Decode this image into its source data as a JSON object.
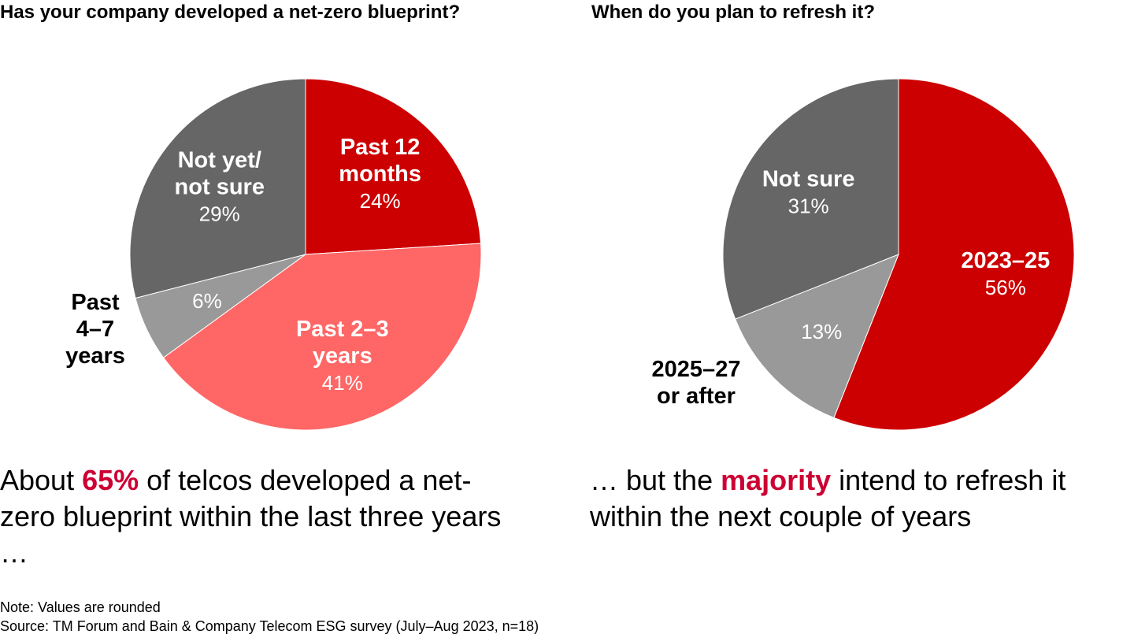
{
  "colors": {
    "red": "#cc0000",
    "salmon": "#ff6666",
    "dark_gray": "#666666",
    "light_gray": "#999999",
    "highlight": "#cc0033"
  },
  "chart_data": [
    {
      "type": "pie",
      "title": "Has your company developed a net-zero blueprint?",
      "slices": [
        {
          "label_lines": [
            "Past 12",
            "months"
          ],
          "pct_label": "24%",
          "value": 24,
          "color": "#cc0000",
          "label_outside": false
        },
        {
          "label_lines": [
            "Past 2–3",
            "years"
          ],
          "pct_label": "41%",
          "value": 41,
          "color": "#ff6666",
          "label_outside": false
        },
        {
          "label_lines": [
            "Past",
            "4–7",
            "years"
          ],
          "pct_label": "6%",
          "value": 6,
          "color": "#999999",
          "label_outside": true
        },
        {
          "label_lines": [
            "Not yet/",
            "not sure"
          ],
          "pct_label": "29%",
          "value": 29,
          "color": "#666666",
          "label_outside": false
        }
      ]
    },
    {
      "type": "pie",
      "title": "When do you plan to refresh it?",
      "slices": [
        {
          "label_lines": [
            "2023–25"
          ],
          "pct_label": "56%",
          "value": 56,
          "color": "#cc0000",
          "label_outside": false
        },
        {
          "label_lines": [
            "2025–27",
            "or after"
          ],
          "pct_label": "13%",
          "value": 13,
          "color": "#999999",
          "label_outside": true
        },
        {
          "label_lines": [
            "Not sure"
          ],
          "pct_label": "31%",
          "value": 31,
          "color": "#666666",
          "label_outside": false
        }
      ]
    }
  ],
  "captions": {
    "left": {
      "before": "About ",
      "highlight": "65%",
      "after": " of telcos developed a net-zero blueprint within the last three years …"
    },
    "right": {
      "before": "… but the ",
      "highlight": "majority",
      "after": " intend to refresh it within the next couple of years"
    }
  },
  "footer": {
    "note": "Note: Values are rounded",
    "source": "Source: TM Forum and Bain & Company Telecom ESG survey (July–Aug 2023, n=18)"
  }
}
